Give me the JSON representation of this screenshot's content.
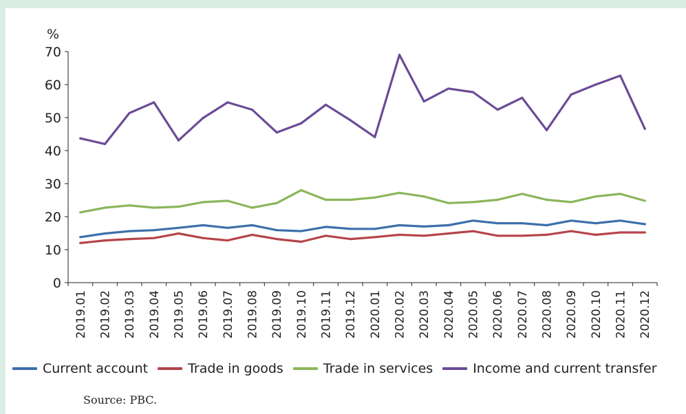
{
  "chart_data": {
    "type": "line",
    "unit_label": "%",
    "ylim": [
      0,
      70
    ],
    "yticks": [
      0,
      10,
      20,
      30,
      40,
      50,
      60,
      70
    ],
    "categories": [
      "2019.01",
      "2019.02",
      "2019.03",
      "2019.04",
      "2019.05",
      "2019.06",
      "2019.07",
      "2019.08",
      "2019.09",
      "2019.10",
      "2019.11",
      "2019.12",
      "2020.01",
      "2020.02",
      "2020.03",
      "2020.04",
      "2020.05",
      "2020.06",
      "2020.07",
      "2020.08",
      "2020.09",
      "2020.10",
      "2020.11",
      "2020.12"
    ],
    "series": [
      {
        "name": "Current account",
        "color": "#3d6fab",
        "values": [
          13.8,
          14.9,
          15.6,
          15.9,
          16.6,
          17.4,
          16.6,
          17.4,
          15.9,
          15.6,
          16.9,
          16.3,
          16.3,
          17.4,
          17.0,
          17.4,
          18.8,
          18.0,
          18.0,
          17.4,
          18.8,
          18.0,
          18.8,
          17.7
        ]
      },
      {
        "name": "Trade in goods",
        "color": "#b5444a",
        "values": [
          12.0,
          12.8,
          13.2,
          13.5,
          14.9,
          13.5,
          12.8,
          14.5,
          13.2,
          12.4,
          14.2,
          13.2,
          13.8,
          14.5,
          14.2,
          14.9,
          15.6,
          14.2,
          14.2,
          14.5,
          15.6,
          14.5,
          15.2,
          15.2
        ]
      },
      {
        "name": "Trade in services",
        "color": "#8ab65a",
        "values": [
          21.3,
          22.7,
          23.4,
          22.7,
          23.0,
          24.4,
          24.8,
          22.7,
          24.1,
          28.0,
          25.1,
          25.1,
          25.8,
          27.2,
          26.1,
          24.1,
          24.4,
          25.1,
          26.9,
          25.1,
          24.4,
          26.1,
          26.9,
          24.8
        ]
      },
      {
        "name": "Income and current transfer",
        "color": "#6a4b96",
        "values": [
          43.7,
          42.0,
          51.4,
          54.6,
          43.1,
          49.9,
          54.6,
          52.4,
          45.5,
          48.3,
          53.9,
          49.2,
          44.1,
          69.0,
          54.9,
          58.8,
          57.7,
          52.4,
          56.0,
          46.2,
          57.0,
          60.0,
          62.7,
          46.6
        ]
      }
    ]
  },
  "source_text": "Source: PBC."
}
